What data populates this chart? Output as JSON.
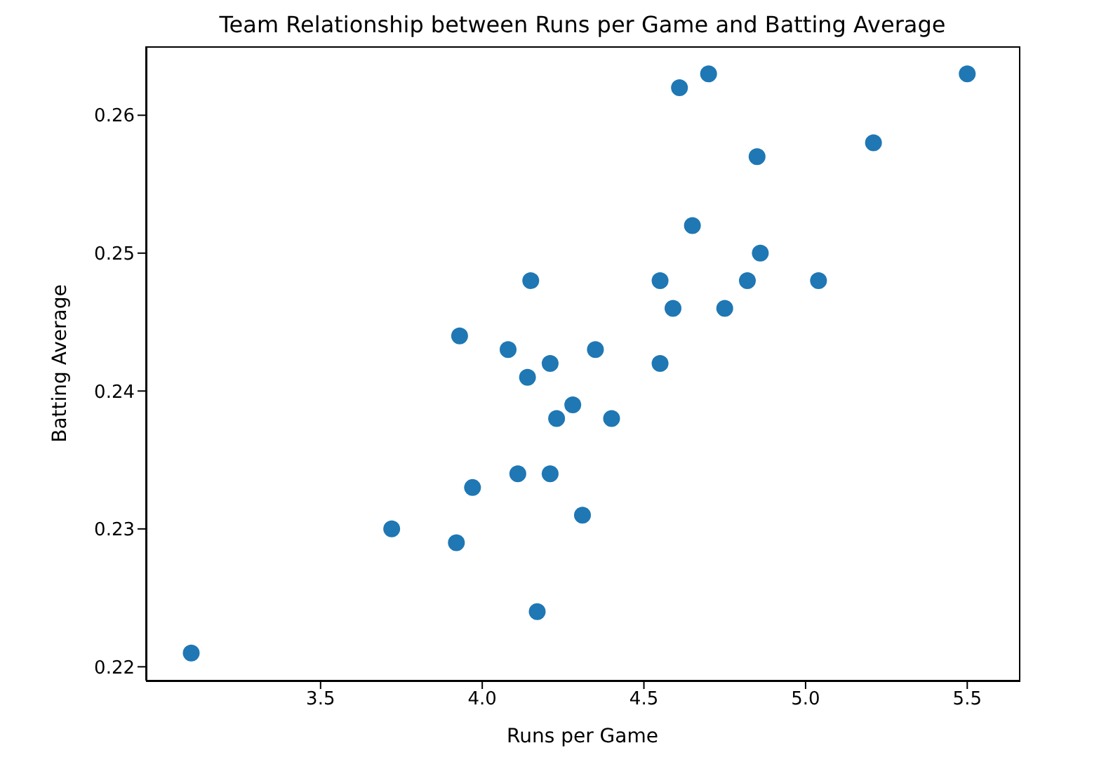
{
  "chart_data": {
    "type": "scatter",
    "title": "Team Relationship between Runs per Game and Batting Average",
    "xlabel": "Runs per Game",
    "ylabel": "Batting Average",
    "x": [
      3.1,
      3.72,
      3.92,
      3.93,
      3.97,
      4.08,
      4.11,
      4.14,
      4.15,
      4.17,
      4.21,
      4.21,
      4.23,
      4.28,
      4.31,
      4.35,
      4.4,
      4.55,
      4.55,
      4.59,
      4.61,
      4.65,
      4.7,
      4.75,
      4.82,
      4.85,
      4.86,
      5.04,
      5.21,
      5.5
    ],
    "values": [
      0.221,
      0.23,
      0.229,
      0.244,
      0.233,
      0.243,
      0.234,
      0.241,
      0.248,
      0.224,
      0.242,
      0.234,
      0.238,
      0.239,
      0.231,
      0.243,
      0.238,
      0.248,
      0.242,
      0.246,
      0.262,
      0.252,
      0.263,
      0.246,
      0.248,
      0.257,
      0.25,
      0.248,
      0.258,
      0.263
    ],
    "color": "#1f77b4",
    "marker": "circle",
    "xlim": [
      2.96,
      5.66
    ],
    "ylim": [
      0.219,
      0.265
    ],
    "xticks": [
      3.5,
      {
        "value": 4,
        "label": "4.0"
      },
      4.5,
      {
        "value": 5,
        "label": "5.0"
      },
      5.5
    ],
    "yticks": [
      0.22,
      0.23,
      0.24,
      0.25,
      0.26
    ],
    "grid": false,
    "legend": false
  }
}
